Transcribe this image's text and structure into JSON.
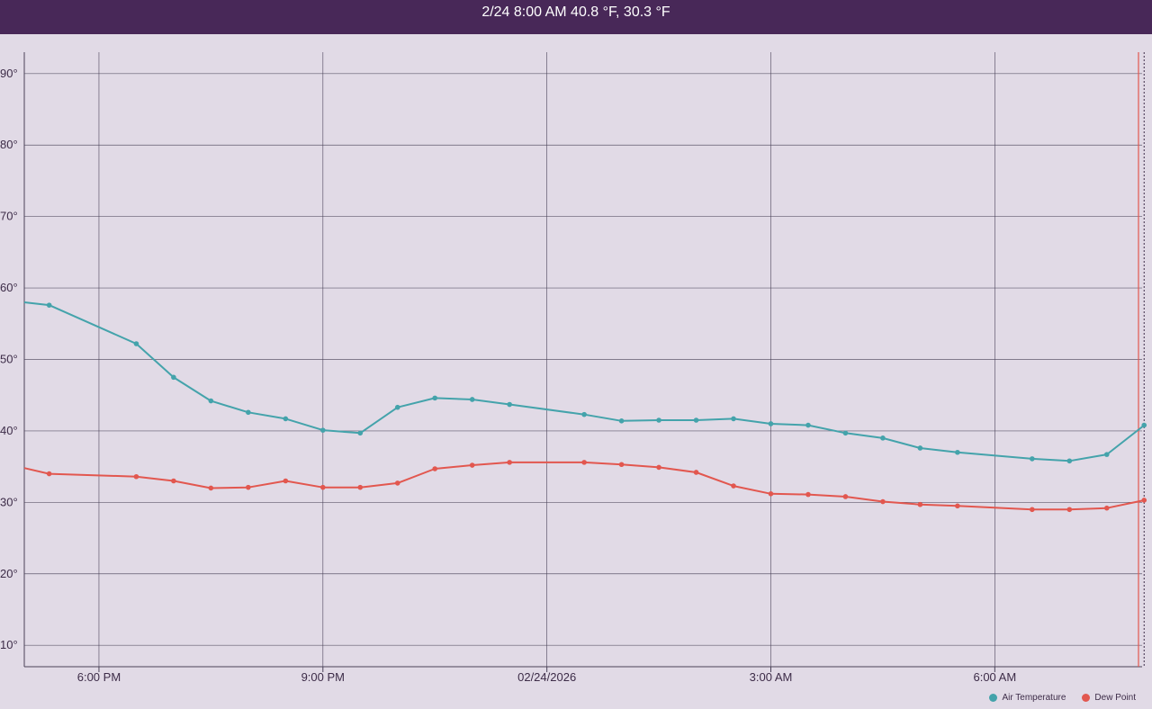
{
  "header": {
    "readout": "2/24 8:00 AM 40.8 °F, 30.3 °F"
  },
  "colors": {
    "air_temperature": "#44a3ab",
    "dew_point": "#e2574f",
    "header_bg": "#482858",
    "plot_bg": "#e1dae6",
    "grid": "#4a4258"
  },
  "chart_data": {
    "type": "line",
    "x_unit": "hours",
    "x_range": [
      "17:00",
      "08:00"
    ],
    "ylim": [
      7,
      93
    ],
    "y_ticks": [
      10,
      20,
      30,
      40,
      50,
      60,
      70,
      80,
      90
    ],
    "y_tick_labels": [
      "10°",
      "20°",
      "30°",
      "40°",
      "50°",
      "60°",
      "70°",
      "80°",
      "90°"
    ],
    "x_ticks": [
      {
        "time": "18:00",
        "label": "6:00 PM"
      },
      {
        "time": "21:00",
        "label": "9:00 PM"
      },
      {
        "time": "00:00",
        "label": "02/24/2026"
      },
      {
        "time": "03:00",
        "label": "3:00 AM"
      },
      {
        "time": "06:00",
        "label": "6:00 AM"
      }
    ],
    "cursor_time": "08:00",
    "grid": true,
    "legend_position": "bottom-right",
    "series": [
      {
        "name": "Air Temperature",
        "key": "air_temperature",
        "points": [
          [
            "17:00",
            58.0
          ],
          [
            "17:20",
            57.6
          ],
          [
            "18:30",
            52.2
          ],
          [
            "19:00",
            47.5
          ],
          [
            "19:30",
            44.2
          ],
          [
            "20:00",
            42.6
          ],
          [
            "20:30",
            41.7
          ],
          [
            "21:00",
            40.1
          ],
          [
            "21:30",
            39.7
          ],
          [
            "22:00",
            43.3
          ],
          [
            "22:30",
            44.6
          ],
          [
            "23:00",
            44.4
          ],
          [
            "23:30",
            43.7
          ],
          [
            "00:30",
            42.3
          ],
          [
            "01:00",
            41.4
          ],
          [
            "01:30",
            41.5
          ],
          [
            "02:00",
            41.5
          ],
          [
            "02:30",
            41.7
          ],
          [
            "03:00",
            41.0
          ],
          [
            "03:30",
            40.8
          ],
          [
            "04:00",
            39.7
          ],
          [
            "04:30",
            39.0
          ],
          [
            "05:00",
            37.6
          ],
          [
            "05:30",
            37.0
          ],
          [
            "06:30",
            36.1
          ],
          [
            "07:00",
            35.8
          ],
          [
            "07:30",
            36.7
          ],
          [
            "08:00",
            40.8
          ]
        ]
      },
      {
        "name": "Dew Point",
        "key": "dew_point",
        "points": [
          [
            "17:00",
            34.8
          ],
          [
            "17:20",
            34.0
          ],
          [
            "18:30",
            33.6
          ],
          [
            "19:00",
            33.0
          ],
          [
            "19:30",
            32.0
          ],
          [
            "20:00",
            32.1
          ],
          [
            "20:30",
            33.0
          ],
          [
            "21:00",
            32.1
          ],
          [
            "21:30",
            32.1
          ],
          [
            "22:00",
            32.7
          ],
          [
            "22:30",
            34.7
          ],
          [
            "23:00",
            35.2
          ],
          [
            "23:30",
            35.6
          ],
          [
            "00:30",
            35.6
          ],
          [
            "01:00",
            35.3
          ],
          [
            "01:30",
            34.9
          ],
          [
            "02:00",
            34.2
          ],
          [
            "02:30",
            32.3
          ],
          [
            "03:00",
            31.2
          ],
          [
            "03:30",
            31.1
          ],
          [
            "04:00",
            30.8
          ],
          [
            "04:30",
            30.1
          ],
          [
            "05:00",
            29.7
          ],
          [
            "05:30",
            29.5
          ],
          [
            "06:30",
            29.0
          ],
          [
            "07:00",
            29.0
          ],
          [
            "07:30",
            29.2
          ],
          [
            "08:00",
            30.3
          ]
        ]
      }
    ]
  }
}
